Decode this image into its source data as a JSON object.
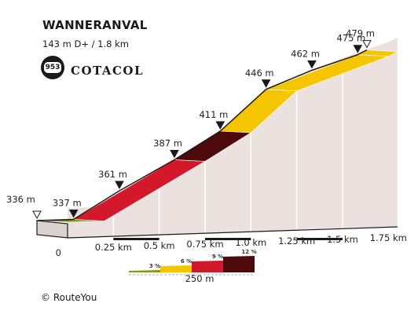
{
  "title": "WANNERANVAL",
  "stats": "143 m D+ / 1.8 km",
  "cotacol": {
    "number": "953",
    "label": "COTACOL"
  },
  "copyright": "© RouteYou",
  "colors": {
    "3": "#869a13",
    "6": "#f5c600",
    "9": "#d2182a",
    "12": "#4e0a0a",
    "side": "#ebe2df",
    "outline": "#1a1a1a"
  },
  "chart_data": {
    "type": "area",
    "title": "WANNERANVAL",
    "xlabel": "",
    "ylabel": "",
    "x_unit": "km",
    "y_unit": "m",
    "xlim": [
      0,
      1.8
    ],
    "x_ticks": [
      "0",
      "0.25 km",
      "0.5 km",
      "0.75 km",
      "1.0 km",
      "1.25 km",
      "1.5 km",
      "1.75 km"
    ],
    "points": [
      {
        "x": 0,
        "y": 336,
        "label": "336 m"
      },
      {
        "x": 0.2,
        "y": 337,
        "label": "337 m"
      },
      {
        "x": 0.45,
        "y": 361,
        "label": "361 m"
      },
      {
        "x": 0.75,
        "y": 387,
        "label": "387 m"
      },
      {
        "x": 1.0,
        "y": 411,
        "label": "411 m"
      },
      {
        "x": 1.25,
        "y": 446,
        "label": "446 m"
      },
      {
        "x": 1.5,
        "y": 462,
        "label": "462 m"
      },
      {
        "x": 1.75,
        "y": 475,
        "label": "475 m"
      },
      {
        "x": 1.8,
        "y": 479,
        "label": "479 m"
      }
    ],
    "segments": [
      {
        "from": 0,
        "to": 0.2,
        "class": "3"
      },
      {
        "from": 0.2,
        "to": 0.75,
        "class": "9"
      },
      {
        "from": 0.75,
        "to": 1.0,
        "class": "12"
      },
      {
        "from": 1.0,
        "to": 1.25,
        "class": "6"
      },
      {
        "from": 1.25,
        "to": 1.75,
        "class": "6"
      },
      {
        "from": 1.75,
        "to": 1.8,
        "class": "6"
      }
    ],
    "legend": {
      "items": [
        {
          "label": "3 %",
          "class": "3"
        },
        {
          "label": "6 %",
          "class": "6"
        },
        {
          "label": "9 %",
          "class": "9"
        },
        {
          "label": "12 %",
          "class": "12"
        }
      ],
      "scale_label": "250 m"
    }
  }
}
